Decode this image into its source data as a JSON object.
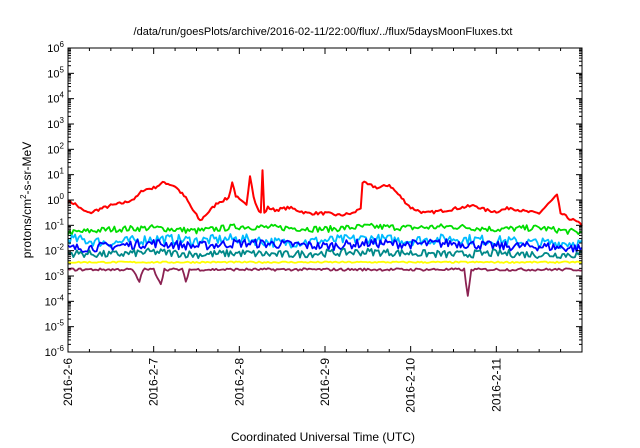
{
  "chart_data": {
    "type": "line",
    "title": "/data/run/goesPlots/archive/2016-02-11/22:00/flux/../flux/5daysMoonFluxes.txt",
    "xlabel": "Coordinated Universal Time (UTC)",
    "ylabel": {
      "pre": "protons/cm",
      "sup": "2",
      "post": "-s-sr-MeV"
    },
    "y_scale": "log",
    "ylim": [
      1e-06,
      1000000.0
    ],
    "xlim": [
      "2016-02-06",
      "2016-02-12"
    ],
    "grid": false,
    "legend": "none",
    "yticks": [
      {
        "value": 1000000.0,
        "exp": "6"
      },
      {
        "value": 100000.0,
        "exp": "5"
      },
      {
        "value": 10000.0,
        "exp": "4"
      },
      {
        "value": 1000.0,
        "exp": "3"
      },
      {
        "value": 100.0,
        "exp": "2"
      },
      {
        "value": 10.0,
        "exp": "1"
      },
      {
        "value": 1.0,
        "exp": "0"
      },
      {
        "value": 0.1,
        "exp": "-1"
      },
      {
        "value": 0.01,
        "exp": "-2"
      },
      {
        "value": 0.001,
        "exp": "-3"
      },
      {
        "value": 0.0001,
        "exp": "-4"
      },
      {
        "value": 1e-05,
        "exp": "-5"
      },
      {
        "value": 1e-06,
        "exp": "-6"
      }
    ],
    "ytick_base": "10",
    "xticks": [
      {
        "date": "2016-02-06",
        "label": "2016-2-6"
      },
      {
        "date": "2016-02-07",
        "label": "2016-2-7"
      },
      {
        "date": "2016-02-08",
        "label": "2016-2-8"
      },
      {
        "date": "2016-02-09",
        "label": "2016-2-9"
      },
      {
        "date": "2016-02-10",
        "label": "2016-2-10"
      },
      {
        "date": "2016-02-11",
        "label": "2016-2-11"
      }
    ],
    "series": [
      {
        "color": "#ff0000",
        "noise": 0.06,
        "points": [
          [
            "2016-02-06T00:00",
            0.9
          ],
          [
            "2016-02-06T02:00",
            0.7
          ],
          [
            "2016-02-06T04:00",
            0.4
          ],
          [
            "2016-02-06T06:00",
            0.3
          ],
          [
            "2016-02-06T08:00",
            0.4
          ],
          [
            "2016-02-06T12:00",
            0.6
          ],
          [
            "2016-02-06T16:00",
            0.8
          ],
          [
            "2016-02-06T19:00",
            1.2
          ],
          [
            "2016-02-06T21:00",
            2.5
          ],
          [
            "2016-02-07T00:00",
            3.0
          ],
          [
            "2016-02-07T03:00",
            5.0
          ],
          [
            "2016-02-07T06:00",
            3.5
          ],
          [
            "2016-02-07T09:00",
            1.2
          ],
          [
            "2016-02-07T11:00",
            0.4
          ],
          [
            "2016-02-07T13:00",
            0.15
          ],
          [
            "2016-02-07T15:00",
            0.3
          ],
          [
            "2016-02-07T18:00",
            0.8
          ],
          [
            "2016-02-07T21:00",
            1.2
          ],
          [
            "2016-02-07T22:00",
            5.0
          ],
          [
            "2016-02-07T23:00",
            1.5
          ],
          [
            "2016-02-08T00:00",
            1.0
          ],
          [
            "2016-02-08T02:00",
            0.6
          ],
          [
            "2016-02-08T03:00",
            10.0
          ],
          [
            "2016-02-08T04:00",
            1.5
          ],
          [
            "2016-02-08T05:00",
            0.5
          ],
          [
            "2016-02-08T06:00",
            0.3
          ],
          [
            "2016-02-08T06:30",
            15.0
          ],
          [
            "2016-02-08T07:00",
            0.3
          ],
          [
            "2016-02-08T08:00",
            0.5
          ],
          [
            "2016-02-08T10:00",
            0.4
          ],
          [
            "2016-02-08T14:00",
            0.5
          ],
          [
            "2016-02-08T19:00",
            0.3
          ],
          [
            "2016-02-09T00:00",
            0.3
          ],
          [
            "2016-02-09T04:00",
            0.25
          ],
          [
            "2016-02-09T08:00",
            0.3
          ],
          [
            "2016-02-09T10:00",
            0.5
          ],
          [
            "2016-02-09T10:30",
            5.0
          ],
          [
            "2016-02-09T12:00",
            4.0
          ],
          [
            "2016-02-09T15:00",
            3.0
          ],
          [
            "2016-02-09T18:00",
            4.0
          ],
          [
            "2016-02-09T20:00",
            2.0
          ],
          [
            "2016-02-09T22:00",
            1.0
          ],
          [
            "2016-02-10T00:00",
            0.5
          ],
          [
            "2016-02-10T04:00",
            0.3
          ],
          [
            "2016-02-10T10:00",
            0.4
          ],
          [
            "2016-02-10T14:00",
            0.5
          ],
          [
            "2016-02-10T18:00",
            0.6
          ],
          [
            "2016-02-10T21:00",
            0.4
          ],
          [
            "2016-02-11T00:00",
            0.35
          ],
          [
            "2016-02-11T04:00",
            0.5
          ],
          [
            "2016-02-11T08:00",
            0.35
          ],
          [
            "2016-02-11T12:00",
            0.3
          ],
          [
            "2016-02-11T15:00",
            0.8
          ],
          [
            "2016-02-11T17:00",
            1.5
          ],
          [
            "2016-02-11T18:00",
            0.3
          ],
          [
            "2016-02-11T20:00",
            0.2
          ],
          [
            "2016-02-11T22:00",
            0.15
          ],
          [
            "2016-02-12T00:00",
            0.1
          ]
        ]
      },
      {
        "color": "#00dd00",
        "noise": 0.12,
        "points": [
          [
            "2016-02-06T00:00",
            0.05
          ],
          [
            "2016-02-06T12:00",
            0.07
          ],
          [
            "2016-02-07T00:00",
            0.08
          ],
          [
            "2016-02-07T12:00",
            0.06
          ],
          [
            "2016-02-08T00:00",
            0.09
          ],
          [
            "2016-02-08T12:00",
            0.08
          ],
          [
            "2016-02-09T00:00",
            0.07
          ],
          [
            "2016-02-09T12:00",
            0.09
          ],
          [
            "2016-02-10T00:00",
            0.08
          ],
          [
            "2016-02-10T12:00",
            0.09
          ],
          [
            "2016-02-11T00:00",
            0.07
          ],
          [
            "2016-02-11T12:00",
            0.08
          ],
          [
            "2016-02-12T00:00",
            0.05
          ]
        ]
      },
      {
        "color": "#00bbff",
        "noise": 0.2,
        "points": [
          [
            "2016-02-06T00:00",
            0.03
          ],
          [
            "2016-02-06T12:00",
            0.02
          ],
          [
            "2016-02-07T00:00",
            0.03
          ],
          [
            "2016-02-07T12:00",
            0.025
          ],
          [
            "2016-02-08T00:00",
            0.03
          ],
          [
            "2016-02-08T12:00",
            0.02
          ],
          [
            "2016-02-09T00:00",
            0.025
          ],
          [
            "2016-02-09T12:00",
            0.03
          ],
          [
            "2016-02-10T00:00",
            0.025
          ],
          [
            "2016-02-10T12:00",
            0.03
          ],
          [
            "2016-02-11T00:00",
            0.025
          ],
          [
            "2016-02-11T12:00",
            0.02
          ],
          [
            "2016-02-12T00:00",
            0.02
          ]
        ]
      },
      {
        "color": "#0000ff",
        "noise": 0.18,
        "points": [
          [
            "2016-02-06T00:00",
            0.012
          ],
          [
            "2016-02-06T12:00",
            0.015
          ],
          [
            "2016-02-07T00:00",
            0.02
          ],
          [
            "2016-02-07T12:00",
            0.015
          ],
          [
            "2016-02-08T00:00",
            0.02
          ],
          [
            "2016-02-08T12:00",
            0.018
          ],
          [
            "2016-02-09T00:00",
            0.015
          ],
          [
            "2016-02-09T12:00",
            0.02
          ],
          [
            "2016-02-10T00:00",
            0.018
          ],
          [
            "2016-02-10T12:00",
            0.02
          ],
          [
            "2016-02-11T00:00",
            0.015
          ],
          [
            "2016-02-11T12:00",
            0.015
          ],
          [
            "2016-02-12T00:00",
            0.012
          ]
        ]
      },
      {
        "color": "#008888",
        "noise": 0.15,
        "points": [
          [
            "2016-02-06T00:00",
            0.008
          ],
          [
            "2016-02-06T12:00",
            0.007
          ],
          [
            "2016-02-07T00:00",
            0.009
          ],
          [
            "2016-02-07T12:00",
            0.007
          ],
          [
            "2016-02-08T00:00",
            0.008
          ],
          [
            "2016-02-08T12:00",
            0.007
          ],
          [
            "2016-02-09T00:00",
            0.008
          ],
          [
            "2016-02-09T12:00",
            0.009
          ],
          [
            "2016-02-10T00:00",
            0.008
          ],
          [
            "2016-02-10T12:00",
            0.007
          ],
          [
            "2016-02-11T00:00",
            0.008
          ],
          [
            "2016-02-11T12:00",
            0.007
          ],
          [
            "2016-02-12T00:00",
            0.007
          ]
        ]
      },
      {
        "color": "#ffff00",
        "noise": 0.03,
        "points": [
          [
            "2016-02-06T00:00",
            0.0035
          ],
          [
            "2016-02-07T00:00",
            0.0035
          ],
          [
            "2016-02-08T00:00",
            0.0035
          ],
          [
            "2016-02-09T00:00",
            0.0035
          ],
          [
            "2016-02-10T00:00",
            0.0035
          ],
          [
            "2016-02-11T00:00",
            0.0035
          ],
          [
            "2016-02-12T00:00",
            0.0035
          ]
        ]
      },
      {
        "color": "#8b2252",
        "noise": 0.05,
        "points": [
          [
            "2016-02-06T00:00",
            0.0018
          ],
          [
            "2016-02-06T18:00",
            0.0018
          ],
          [
            "2016-02-06T20:00",
            0.0006
          ],
          [
            "2016-02-06T21:00",
            0.0018
          ],
          [
            "2016-02-07T00:00",
            0.0018
          ],
          [
            "2016-02-07T02:00",
            0.0005
          ],
          [
            "2016-02-07T03:00",
            0.0018
          ],
          [
            "2016-02-07T08:00",
            0.0018
          ],
          [
            "2016-02-07T09:00",
            0.0006
          ],
          [
            "2016-02-07T10:00",
            0.0018
          ],
          [
            "2016-02-10T15:00",
            0.0018
          ],
          [
            "2016-02-10T16:00",
            0.00015
          ],
          [
            "2016-02-10T17:00",
            0.0018
          ],
          [
            "2016-02-12T00:00",
            0.0018
          ]
        ]
      }
    ]
  }
}
